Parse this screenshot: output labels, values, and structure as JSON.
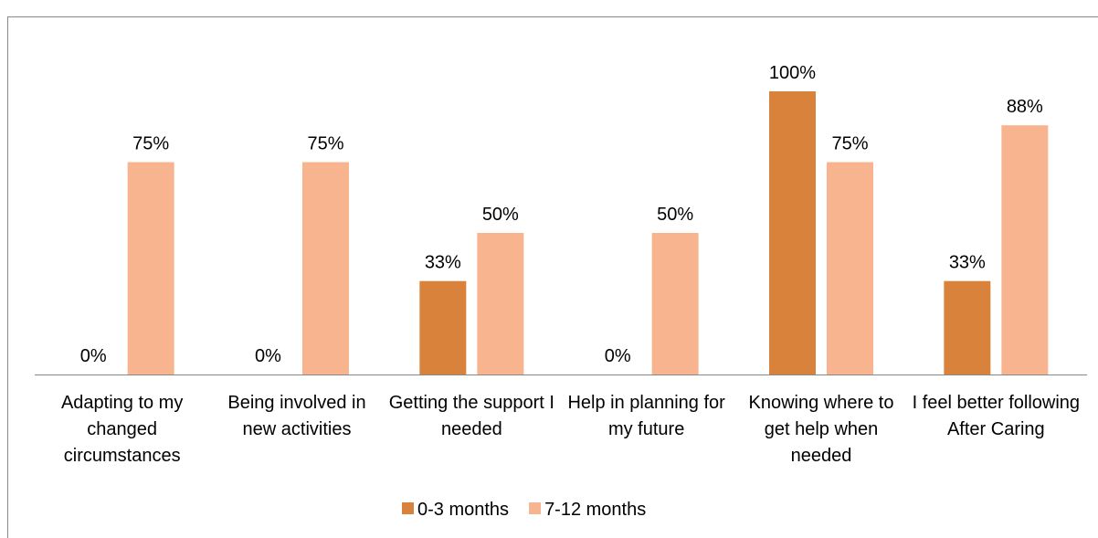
{
  "chart_data": {
    "type": "bar",
    "categories": [
      "Adapting to my changed circumstances",
      "Being involved in new activities",
      "Getting the support I needed",
      "Help in planning for my future",
      "Knowing where to get help when needed",
      "I feel better following After Caring"
    ],
    "series": [
      {
        "name": "0-3 months",
        "color": "#d9823b",
        "values": [
          0,
          0,
          33,
          0,
          100,
          33
        ],
        "value_labels": [
          "0%",
          "0%",
          "33%",
          "0%",
          "100%",
          "33%"
        ]
      },
      {
        "name": "7-12 months",
        "color": "#f8b48f",
        "values": [
          75,
          75,
          50,
          50,
          75,
          88
        ],
        "value_labels": [
          "75%",
          "75%",
          "50%",
          "50%",
          "75%",
          "88%"
        ]
      }
    ],
    "ylim": [
      0,
      100
    ],
    "legend": "bottom"
  }
}
